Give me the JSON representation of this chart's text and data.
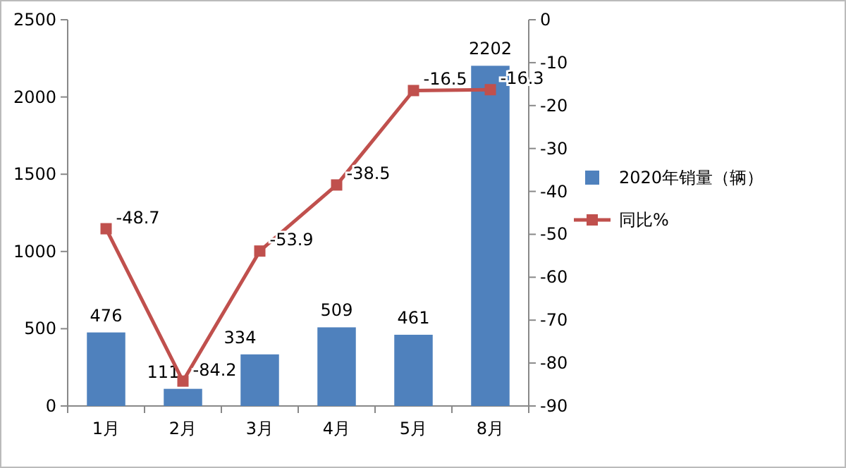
{
  "chart_data": {
    "type": "bar",
    "categories": [
      "1月",
      "2月",
      "3月",
      "4月",
      "5月",
      "8月"
    ],
    "series": [
      {
        "name": "2020年销量（辆）",
        "color": "#4f81bd",
        "values": [
          476,
          111,
          334,
          509,
          461,
          2202
        ]
      },
      {
        "name": "同比%",
        "type": "line",
        "axis": "y2",
        "color": "#c0504d",
        "values": [
          -48.7,
          -84.2,
          -53.9,
          -38.5,
          -16.5,
          -16.3
        ]
      }
    ],
    "ylim": [
      0,
      2500
    ],
    "yticks": [
      0,
      500,
      1000,
      1500,
      2000,
      2500
    ],
    "y2lim": [
      -90,
      0
    ],
    "y2ticks": [
      -90,
      -80,
      -70,
      -60,
      -50,
      -40,
      -30,
      -20,
      -10,
      0
    ],
    "data_labels": true,
    "legend": "right",
    "marker": "square",
    "line_style": "solid",
    "grid": false
  }
}
